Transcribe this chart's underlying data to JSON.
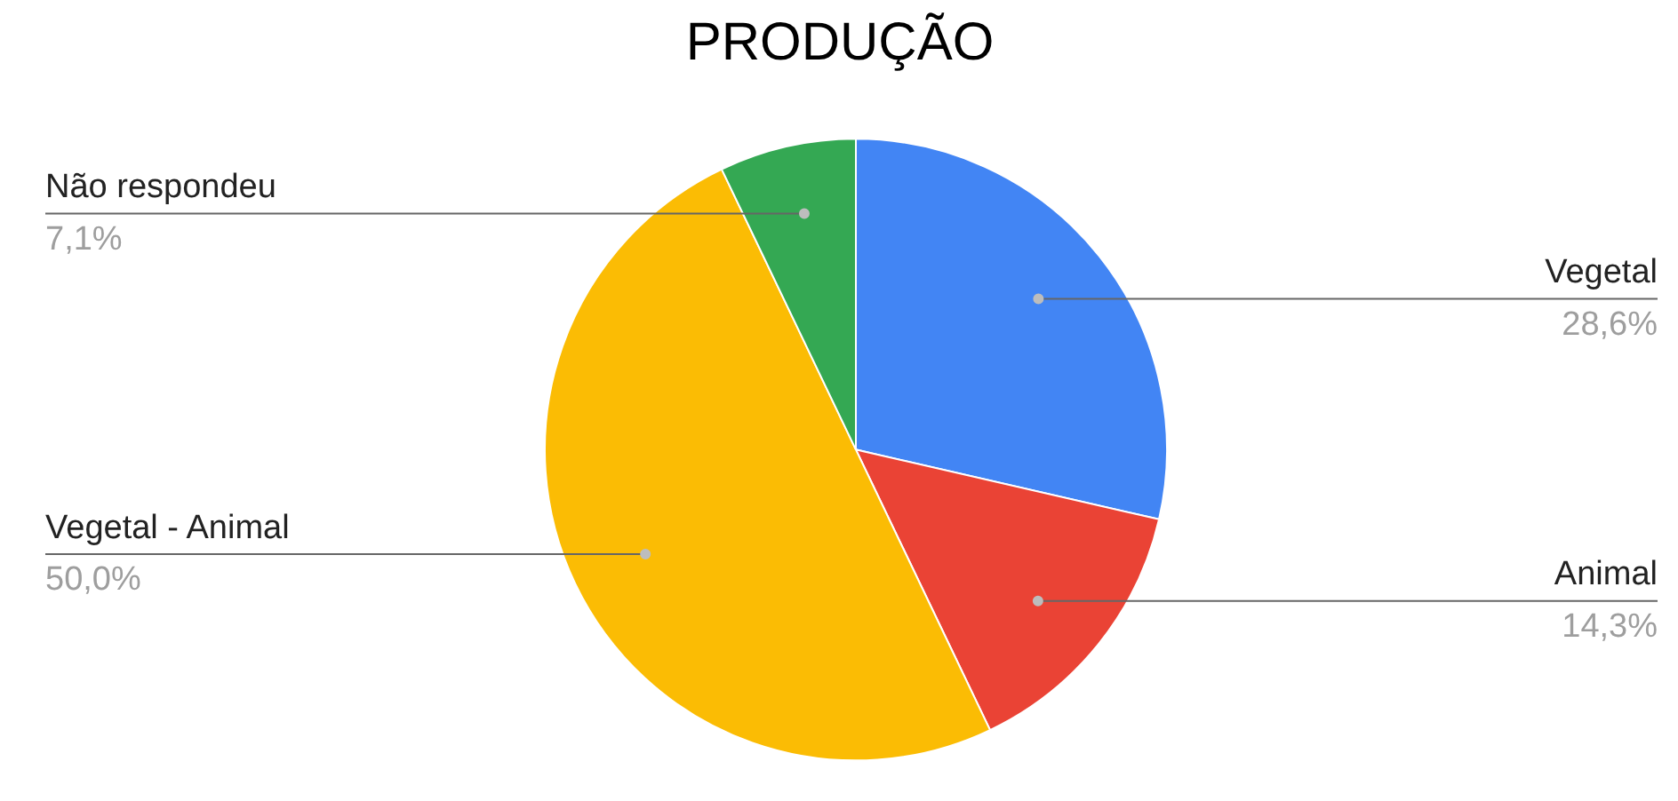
{
  "chart_data": {
    "type": "pie",
    "title": "PRODUÇÃO",
    "categories": [
      "Vegetal",
      "Animal",
      "Vegetal - Animal",
      "Não respondeu"
    ],
    "values": [
      28.6,
      14.3,
      50.0,
      7.1
    ],
    "colors": [
      "#4285f4",
      "#ea4335",
      "#fbbc04",
      "#34a853"
    ],
    "value_labels": [
      "28,6%",
      "14,3%",
      "50,0%",
      "7,1%"
    ]
  }
}
